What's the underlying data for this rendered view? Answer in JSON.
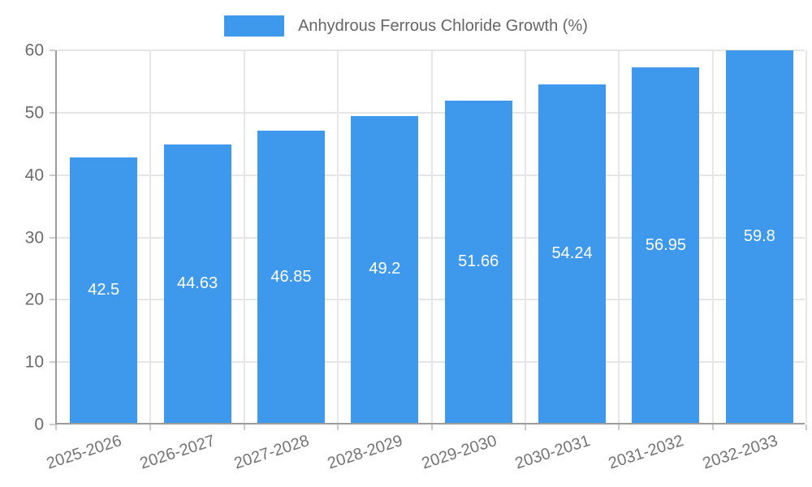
{
  "legend": {
    "label": "Anhydrous Ferrous Chloride Growth (%)"
  },
  "colors": {
    "bar": "#3E99ED",
    "grid": "#E6E6E6",
    "axis": "#9C9C9C",
    "tick": "#CCCCCC",
    "tick_text": "#6B6B6B",
    "bar_label_text": "#FFFFFF",
    "legend_text": "#666666",
    "background": "#FFFFFF"
  },
  "chart_data": {
    "type": "bar",
    "title": "",
    "series_name": "Anhydrous Ferrous Chloride Growth (%)",
    "categories": [
      "2025-2026",
      "2026-2027",
      "2027-2028",
      "2028-2029",
      "2029-2030",
      "2030-2031",
      "2031-2032",
      "2032-2033"
    ],
    "values": [
      42.5,
      44.63,
      46.85,
      49.2,
      51.66,
      54.24,
      56.95,
      59.8
    ],
    "value_labels": [
      "42.5",
      "44.63",
      "46.85",
      "49.2",
      "51.66",
      "54.24",
      "56.95",
      "59.8"
    ],
    "xlabel": "",
    "ylabel": "",
    "ylim": [
      0,
      60
    ],
    "yticks": [
      0,
      10,
      20,
      30,
      40,
      50,
      60
    ],
    "grid": true,
    "legend_position": "top-center",
    "value_label_position": "inside-center",
    "xtick_rotation_deg": -18
  }
}
